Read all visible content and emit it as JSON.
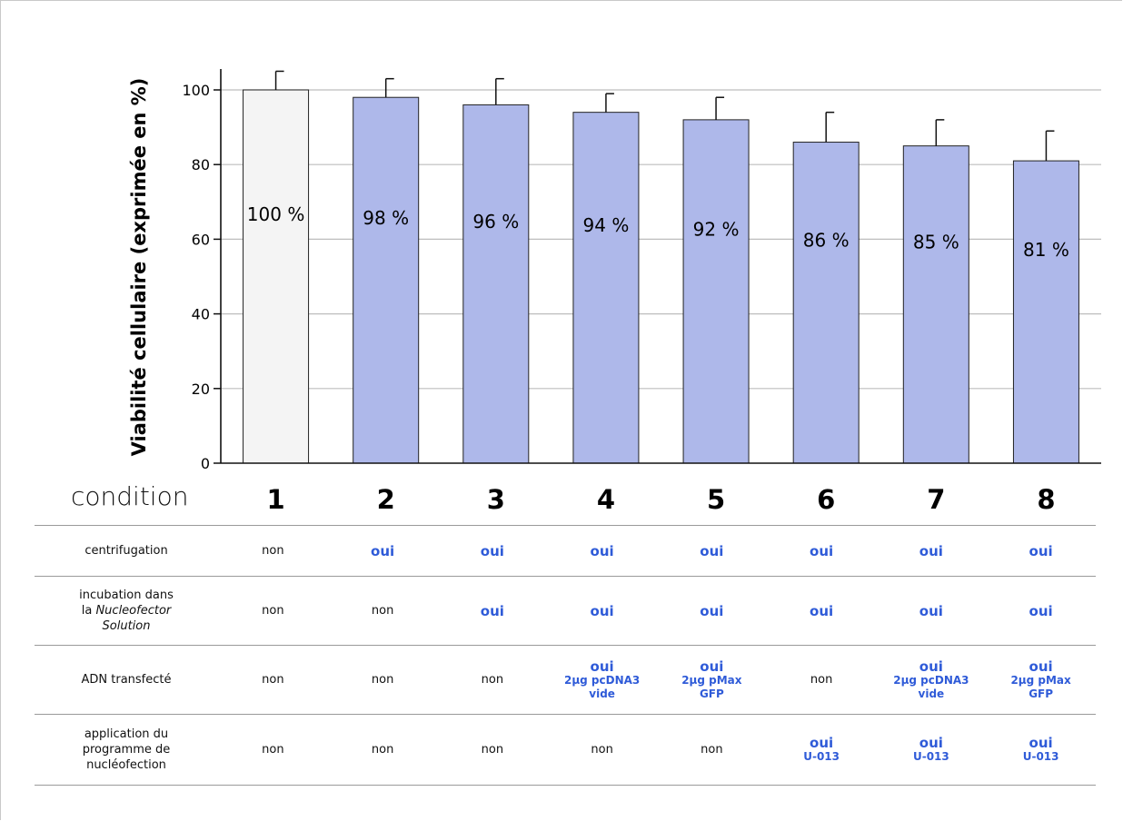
{
  "chart_data": {
    "type": "bar",
    "ylabel": "Viabilité cellulaire (exprimée en %)",
    "xlabel": "condition",
    "categories": [
      "1",
      "2",
      "3",
      "4",
      "5",
      "6",
      "7",
      "8"
    ],
    "values": [
      100,
      98,
      96,
      94,
      92,
      86,
      85,
      81
    ],
    "error": [
      5,
      5,
      7,
      5,
      6,
      8,
      7,
      8
    ],
    "data_labels": [
      "100 %",
      "98 %",
      "96 %",
      "94 %",
      "92 %",
      "86 %",
      "85 %",
      "81 %"
    ],
    "ylim": [
      0,
      105
    ],
    "yticks": [
      0,
      20,
      40,
      60,
      80,
      100
    ],
    "grid": true,
    "colors": {
      "control": "#f4f4f4",
      "treated": "#aeb8ea",
      "outline": "#222222",
      "grid": "#bdbdbd"
    }
  },
  "conditions_table": {
    "rows": [
      {
        "label_lines": [
          "centrifugation"
        ],
        "cells": [
          [
            "non"
          ],
          [
            "oui"
          ],
          [
            "oui"
          ],
          [
            "oui"
          ],
          [
            "oui"
          ],
          [
            "oui"
          ],
          [
            "oui"
          ],
          [
            "oui"
          ]
        ]
      },
      {
        "label_lines": [
          "incubation dans",
          "la ",
          "Nucleofector",
          "Solution"
        ],
        "cells": [
          [
            "non"
          ],
          [
            "non"
          ],
          [
            "oui"
          ],
          [
            "oui"
          ],
          [
            "oui"
          ],
          [
            "oui"
          ],
          [
            "oui"
          ],
          [
            "oui"
          ]
        ]
      },
      {
        "label_lines": [
          "ADN transfecté"
        ],
        "cells": [
          [
            "non"
          ],
          [
            "non"
          ],
          [
            "non"
          ],
          [
            "oui",
            "2µg pcDNA3",
            "vide"
          ],
          [
            "oui",
            "2µg pMax",
            "GFP"
          ],
          [
            "non"
          ],
          [
            "oui",
            "2µg pcDNA3",
            "vide"
          ],
          [
            "oui",
            "2µg pMax",
            "GFP"
          ]
        ]
      },
      {
        "label_lines": [
          "application du",
          "programme de",
          "nucléofection"
        ],
        "cells": [
          [
            "non"
          ],
          [
            "non"
          ],
          [
            "non"
          ],
          [
            "non"
          ],
          [
            "non"
          ],
          [
            "oui",
            "U-013"
          ],
          [
            "oui",
            "U-013"
          ],
          [
            "oui",
            "U-013"
          ]
        ]
      }
    ]
  }
}
